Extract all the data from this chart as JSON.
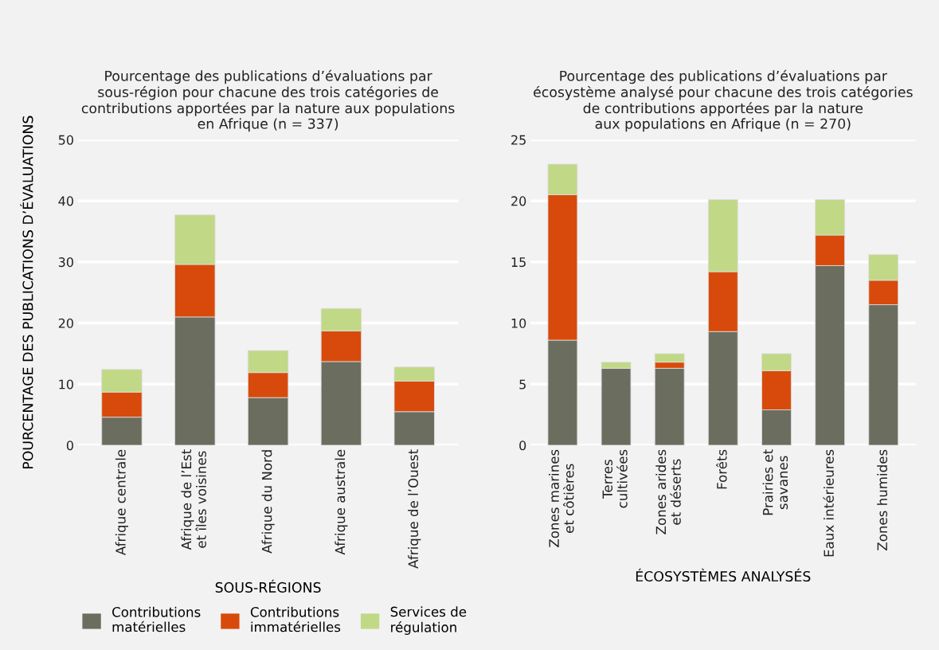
{
  "chart_data": [
    {
      "type": "bar",
      "stacked": true,
      "title": "Pourcentage des publications d’évaluations par\nsous-région pour chacune des trois catégories de\ncontributions apportées par la nature aux populations\nen Afrique (n = 337)",
      "xlabel": "SOUS-RÉGIONS",
      "ylabel": "POURCENTAGE DES PUBLICATIONS D’ÉVALUATIONS",
      "categories": [
        "Afrique centrale",
        "Afrique de l’Est\net îles voisines",
        "Afrique du Nord",
        "Afrique australe",
        "Afrique de l’Ouest"
      ],
      "series": [
        {
          "name": "Contributions\nmatérielles",
          "color": "#6b6e5f",
          "values": [
            4.6,
            21.0,
            7.8,
            13.7,
            5.5
          ]
        },
        {
          "name": "Contributions\nimmatérielles",
          "color": "#d84a0b",
          "values": [
            4.1,
            8.6,
            4.1,
            5.0,
            5.0
          ]
        },
        {
          "name": "Services de\nrégulation",
          "color": "#c1d887",
          "values": [
            3.7,
            8.1,
            3.6,
            3.7,
            2.3
          ]
        }
      ],
      "ylim": [
        0,
        50
      ],
      "yticks": [
        0,
        10,
        20,
        30,
        40,
        50
      ],
      "grid": "y",
      "legend": "bottom"
    },
    {
      "type": "bar",
      "stacked": true,
      "title": "Pourcentage des publications d’évaluations par\nécosystème analysé pour chacune des trois catégories\nde contributions apportées par la nature\naux populations en Afrique (n = 270)",
      "xlabel": "ÉCOSYSTÈMES ANALYSÉS",
      "categories": [
        "Zones marines\net côtières",
        "Terres\ncultivées",
        "Zones arides\net déserts",
        "Forêts",
        "Prairies et\nsavanes",
        "Eaux intérieures",
        "Zones humides"
      ],
      "series": [
        {
          "color": "#6b6e5f",
          "values": [
            8.6,
            6.3,
            6.3,
            9.3,
            2.9,
            14.7,
            11.5
          ]
        },
        {
          "color": "#d84a0b",
          "values": [
            11.9,
            null,
            0.5,
            4.9,
            3.2,
            2.5,
            2.0
          ]
        },
        {
          "color": "#c1d887",
          "values": [
            2.5,
            0.5,
            0.7,
            5.9,
            1.4,
            2.9,
            2.1
          ]
        }
      ],
      "ylim": [
        0,
        25
      ],
      "yticks": [
        0,
        5,
        10,
        15,
        20,
        25
      ],
      "grid": "y"
    }
  ]
}
